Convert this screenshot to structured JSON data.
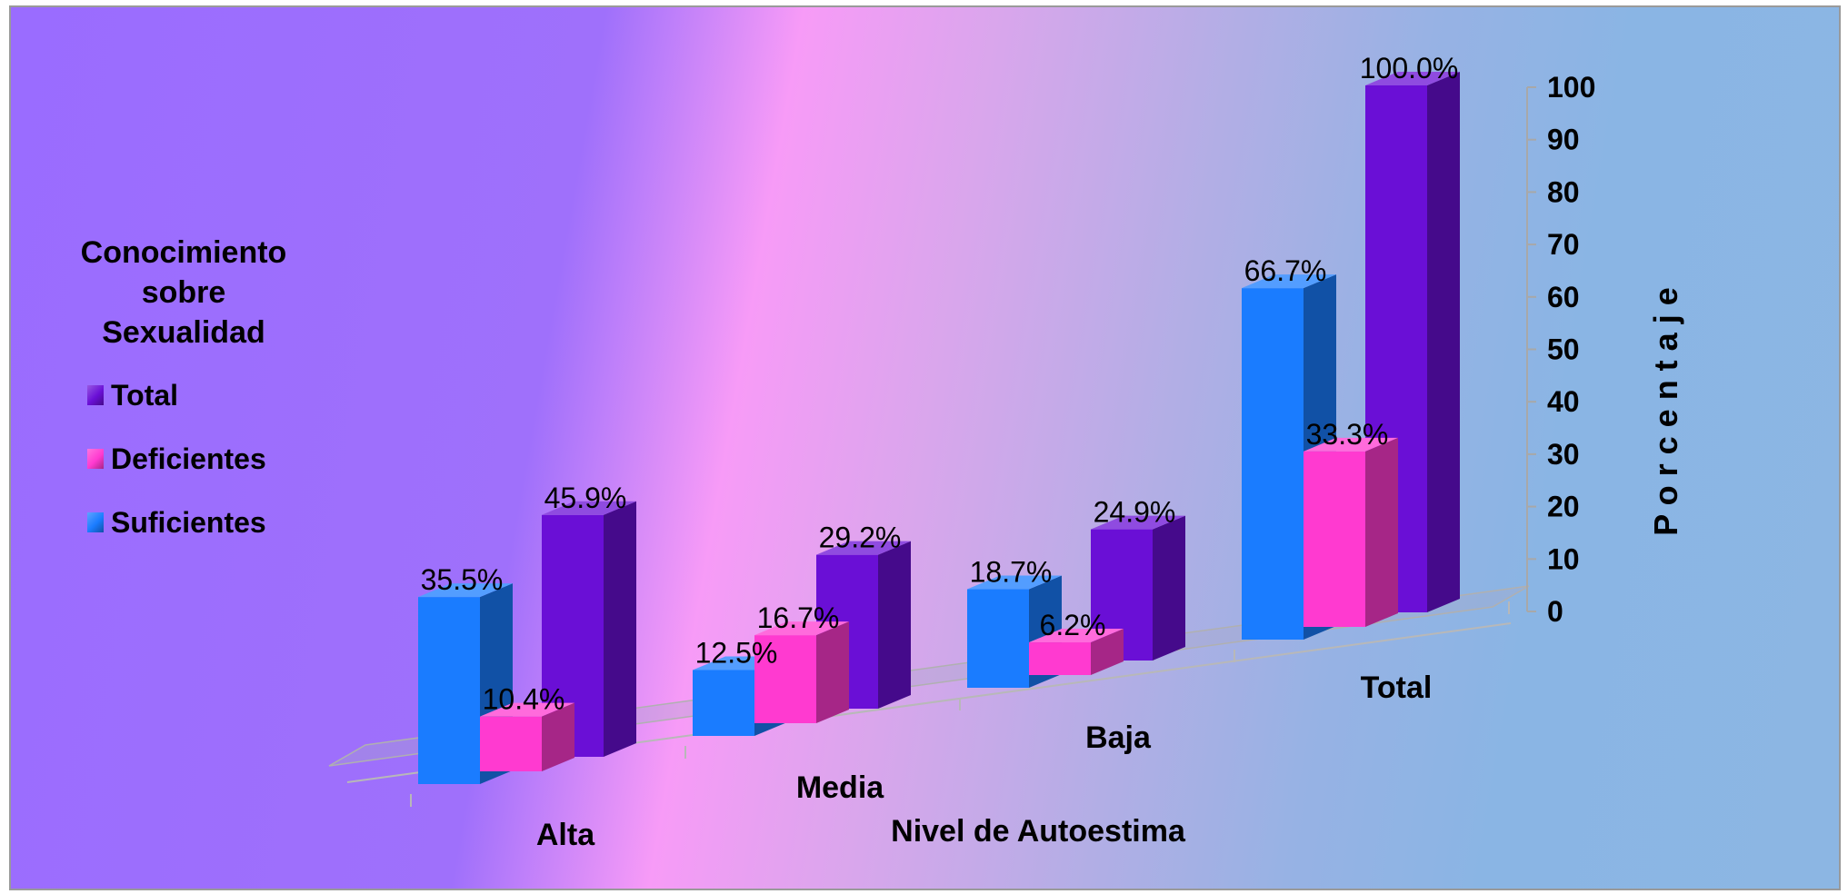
{
  "chart_data": {
    "type": "bar",
    "title": "",
    "xlabel": "Nivel de Autoestima",
    "ylabel": "P o r c e n t a j e",
    "ylim": [
      0,
      100
    ],
    "yticks": [
      "0",
      "10",
      "20",
      "30",
      "40",
      "50",
      "60",
      "70",
      "80",
      "90",
      "100"
    ],
    "categories": [
      "Alta",
      "Media",
      "Baja",
      "Total"
    ],
    "legend_title": "Conocimiento sobre Sexualidad",
    "legend_position": "left",
    "series": [
      {
        "name": "Suficientes",
        "color": "#1a7cff",
        "values": [
          35.5,
          12.5,
          18.7,
          66.7
        ],
        "labels": [
          "35.5%",
          "12.5%",
          "18.7%",
          "66.7%"
        ]
      },
      {
        "name": "Deficientes",
        "color": "#ff3ad0",
        "values": [
          10.4,
          16.7,
          6.2,
          33.3
        ],
        "labels": [
          "10.4%",
          "16.7%",
          "6.2%",
          "33.3%"
        ]
      },
      {
        "name": "Total",
        "color": "#6a0fd6",
        "values": [
          45.9,
          29.2,
          24.9,
          100.0
        ],
        "labels": [
          "45.9%",
          "29.2%",
          "24.9%",
          "100.0%"
        ]
      }
    ],
    "legend_order": [
      "Total",
      "Deficientes",
      "Suficientes"
    ],
    "grid": false
  }
}
